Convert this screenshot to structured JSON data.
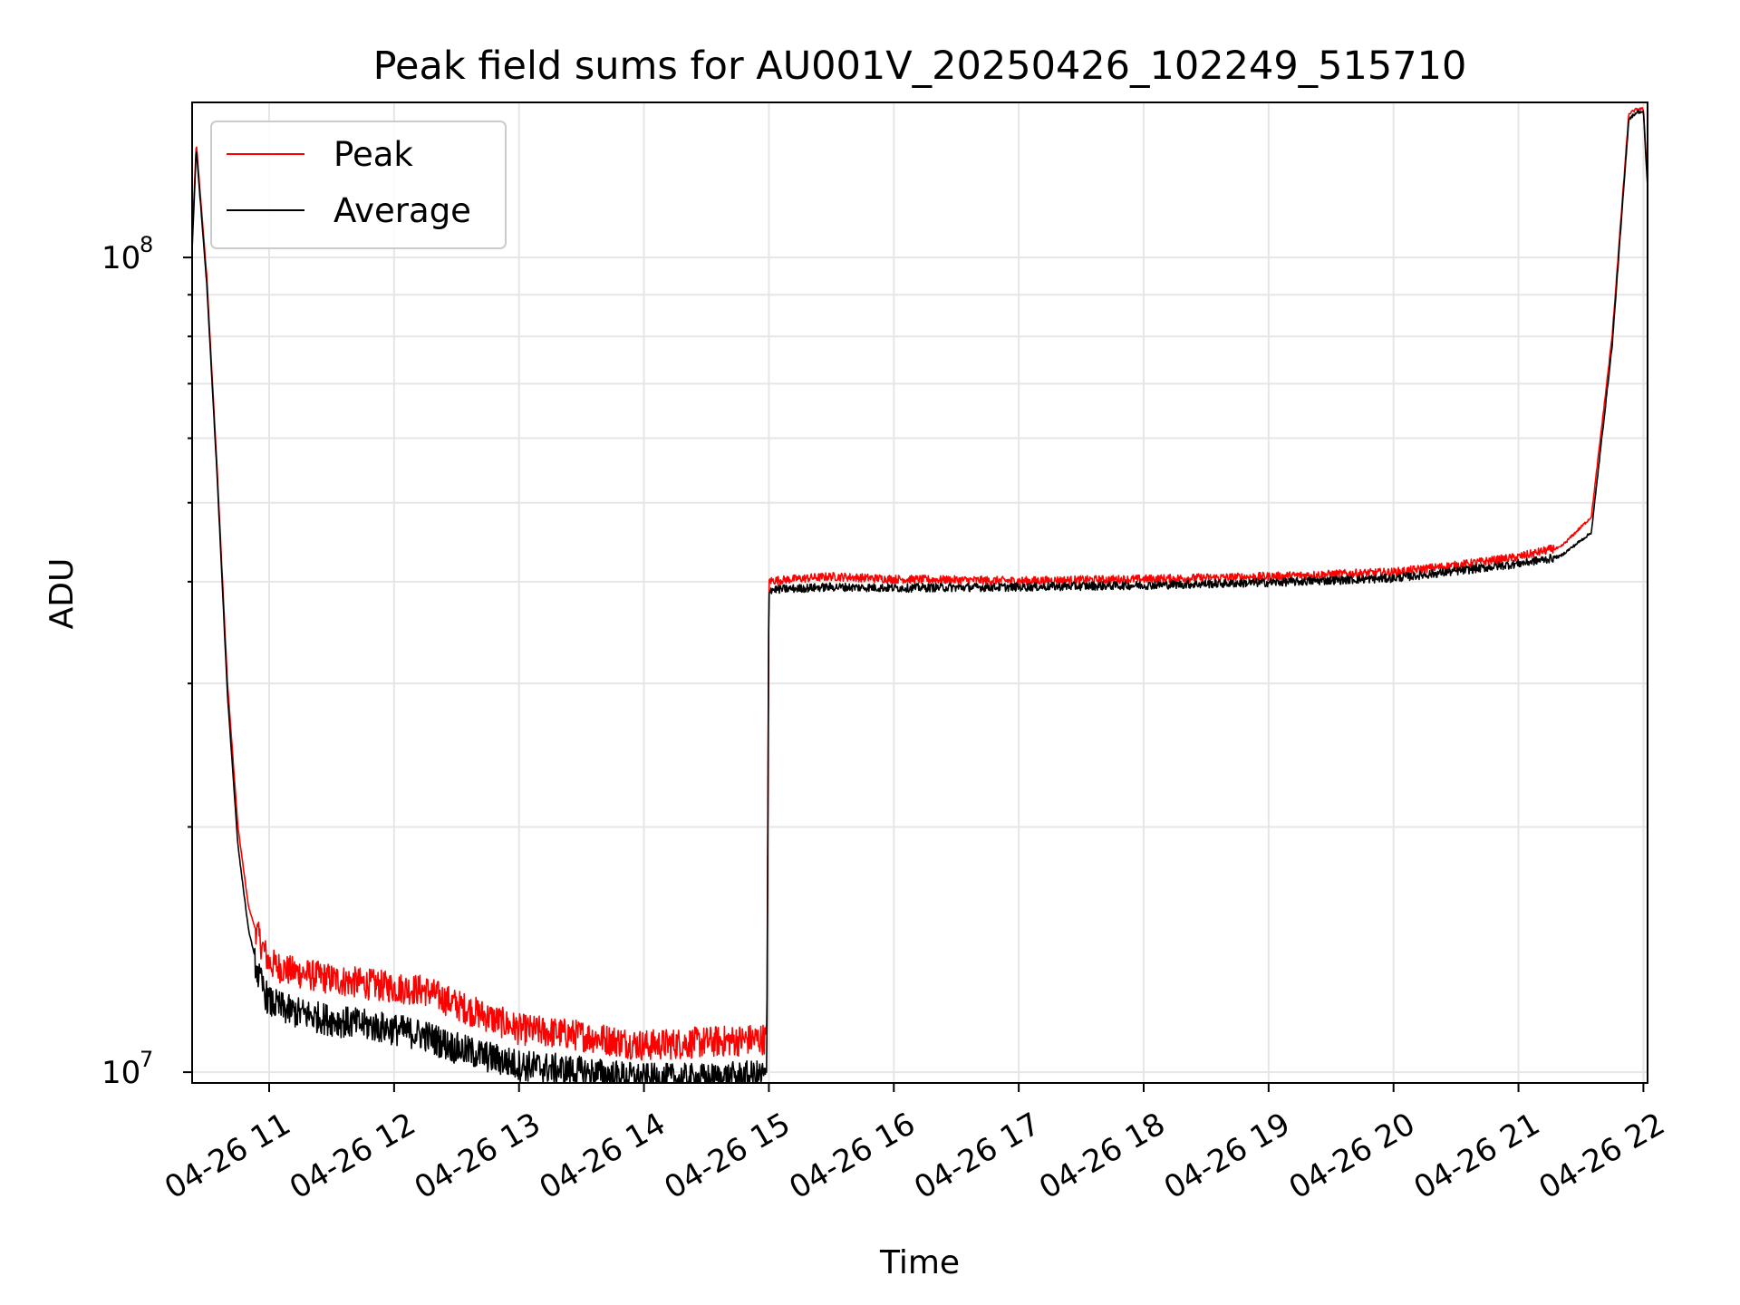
{
  "chart_data": {
    "type": "line",
    "title": "Peak field sums for AU001V_20250426_102249_515710",
    "xlabel": "Time",
    "ylabel": "ADU",
    "yscale": "log",
    "xlim": [
      "2025-04-26 10:23",
      "2025-04-26 22:02"
    ],
    "ylim": [
      9700000,
      155000000
    ],
    "x_tick_labels": [
      "04-26 11",
      "04-26 12",
      "04-26 13",
      "04-26 14",
      "04-26 15",
      "04-26 16",
      "04-26 17",
      "04-26 18",
      "04-26 19",
      "04-26 20",
      "04-26 21",
      "04-26 22"
    ],
    "y_tick_labels": [
      {
        "value": 10000000,
        "base": "10",
        "exp": "7"
      },
      {
        "value": 100000000,
        "base": "10",
        "exp": "8"
      }
    ],
    "grid": true,
    "legend_position": "upper-left",
    "colors": {
      "peak": "#ff0000",
      "average": "#000000",
      "grid": "#e6e6e6"
    },
    "series": [
      {
        "name": "Peak",
        "x": [
          "2025-04-26 10:23",
          "2025-04-26 10:25",
          "2025-04-26 10:30",
          "2025-04-26 10:35",
          "2025-04-26 10:40",
          "2025-04-26 10:45",
          "2025-04-26 10:50",
          "2025-04-26 10:55",
          "2025-04-26 11:00",
          "2025-04-26 11:10",
          "2025-04-26 11:30",
          "2025-04-26 12:00",
          "2025-04-26 12:15",
          "2025-04-26 12:30",
          "2025-04-26 13:00",
          "2025-04-26 13:30",
          "2025-04-26 14:00",
          "2025-04-26 14:30",
          "2025-04-26 14:59",
          "2025-04-26 15:00",
          "2025-04-26 15:30",
          "2025-04-26 16:00",
          "2025-04-26 17:00",
          "2025-04-26 18:00",
          "2025-04-26 19:00",
          "2025-04-26 20:00",
          "2025-04-26 20:30",
          "2025-04-26 21:00",
          "2025-04-26 21:20",
          "2025-04-26 21:35",
          "2025-04-26 21:45",
          "2025-04-26 21:53",
          "2025-04-26 21:57",
          "2025-04-26 22:00",
          "2025-04-26 22:02"
        ],
        "y": [
          105000000,
          138000000,
          95000000,
          55000000,
          30000000,
          20000000,
          16000000,
          14500000,
          13500000,
          13200000,
          12900000,
          12600000,
          12500000,
          12000000,
          11200000,
          11000000,
          10700000,
          10800000,
          10900000,
          40000000,
          40500000,
          40200000,
          40000000,
          40200000,
          40500000,
          41000000,
          41800000,
          42800000,
          44000000,
          48000000,
          80000000,
          150000000,
          152000000,
          152000000,
          124000000
        ]
      },
      {
        "name": "Average",
        "x": [
          "2025-04-26 10:23",
          "2025-04-26 10:25",
          "2025-04-26 10:30",
          "2025-04-26 10:35",
          "2025-04-26 10:40",
          "2025-04-26 10:45",
          "2025-04-26 10:50",
          "2025-04-26 10:55",
          "2025-04-26 11:00",
          "2025-04-26 11:10",
          "2025-04-26 11:30",
          "2025-04-26 12:00",
          "2025-04-26 12:15",
          "2025-04-26 12:30",
          "2025-04-26 13:00",
          "2025-04-26 13:30",
          "2025-04-26 14:00",
          "2025-04-26 14:30",
          "2025-04-26 14:59",
          "2025-04-26 15:00",
          "2025-04-26 15:30",
          "2025-04-26 16:00",
          "2025-04-26 17:00",
          "2025-04-26 18:00",
          "2025-04-26 19:00",
          "2025-04-26 20:00",
          "2025-04-26 20:30",
          "2025-04-26 21:00",
          "2025-04-26 21:20",
          "2025-04-26 21:35",
          "2025-04-26 21:45",
          "2025-04-26 21:53",
          "2025-04-26 21:57",
          "2025-04-26 22:00",
          "2025-04-26 22:02"
        ],
        "y": [
          102000000,
          136000000,
          93000000,
          54000000,
          29000000,
          19000000,
          15000000,
          13200000,
          12300000,
          12000000,
          11700000,
          11400000,
          11200000,
          10800000,
          10300000,
          10100000,
          9900000,
          9900000,
          10000000,
          39200000,
          39500000,
          39400000,
          39500000,
          39700000,
          40000000,
          40500000,
          41300000,
          42200000,
          43000000,
          46000000,
          78000000,
          148000000,
          151000000,
          151000000,
          122000000
        ]
      }
    ]
  }
}
